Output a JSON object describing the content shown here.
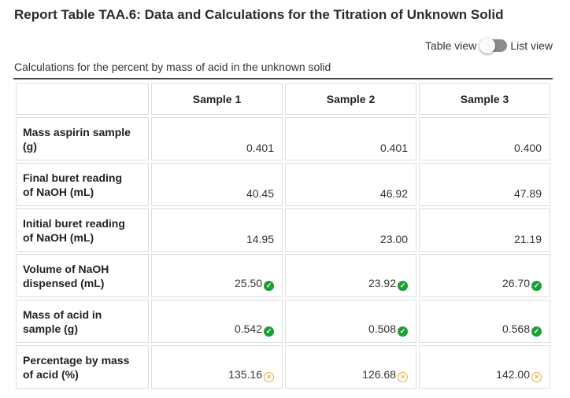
{
  "title": "Report Table TAA.6: Data and Calculations for the Titration of Unknown Solid",
  "view_toggle": {
    "left_label": "Table view",
    "right_label": "List view"
  },
  "caption": "Calculations for the percent by mass of acid in the unknown solid",
  "table": {
    "headers": [
      "",
      "Sample 1",
      "Sample 2",
      "Sample 3"
    ],
    "rows": [
      {
        "label_line1": "Mass aspirin sample",
        "label_line2": "(g)",
        "values": [
          "0.401",
          "0.401",
          "0.400"
        ],
        "status": [
          "none",
          "none",
          "none"
        ]
      },
      {
        "label_line1": "Final buret reading",
        "label_line2": "of NaOH (mL)",
        "values": [
          "40.45",
          "46.92",
          "47.89"
        ],
        "status": [
          "none",
          "none",
          "none"
        ]
      },
      {
        "label_line1": "Initial buret reading",
        "label_line2": "of NaOH (mL)",
        "values": [
          "14.95",
          "23.00",
          "21.19"
        ],
        "status": [
          "none",
          "none",
          "none"
        ]
      },
      {
        "label_line1": "Volume of NaOH",
        "label_line2": "dispensed (mL)",
        "values": [
          "25.50",
          "23.92",
          "26.70"
        ],
        "status": [
          "correct",
          "correct",
          "correct"
        ]
      },
      {
        "label_line1": "Mass of acid in",
        "label_line2": "sample (g)",
        "values": [
          "0.542",
          "0.508",
          "0.568"
        ],
        "status": [
          "correct",
          "correct",
          "correct"
        ]
      },
      {
        "label_line1": "Percentage by mass",
        "label_line2": "of acid (%)",
        "values": [
          "135.16",
          "126.68",
          "142.00"
        ],
        "status": [
          "warning",
          "warning",
          "warning"
        ]
      }
    ]
  },
  "icons": {
    "correct": "check-circle-icon",
    "warning": "warning-circle-icon"
  },
  "colors": {
    "correct": "#1e9e34",
    "warning": "#f0a823",
    "toggle_track": "#8c8c8c"
  }
}
